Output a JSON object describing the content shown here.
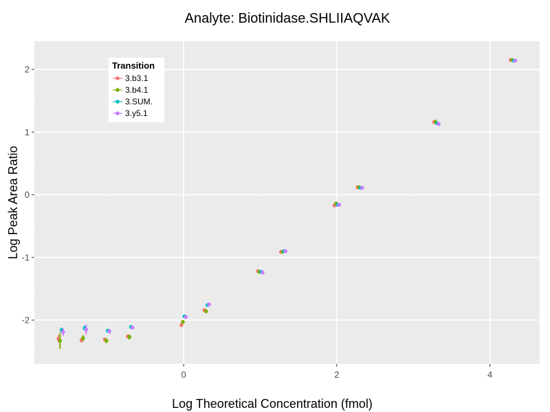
{
  "chart_data": {
    "type": "scatter",
    "title": "Analyte: Biotinidase.SHLIIAQVAK",
    "xlabel": "Log Theoretical Concentration (fmol)",
    "ylabel": "Log Peak Area Ratio",
    "xlim": [
      -1.95,
      4.65
    ],
    "ylim": [
      -2.7,
      2.45
    ],
    "x_ticks": [
      0,
      2,
      4
    ],
    "x_tick_labels": [
      "0",
      "2",
      "4"
    ],
    "y_ticks": [
      -2,
      -1,
      0,
      1,
      2
    ],
    "y_tick_labels": [
      "-2",
      "-1",
      "0",
      "1",
      "2"
    ],
    "grid": true,
    "legend": {
      "title": "Transition",
      "position": "top-left"
    },
    "x": [
      -1.605,
      -1.304,
      -1.0,
      -0.699,
      0.0,
      0.301,
      1.0,
      1.301,
      2.0,
      2.301,
      3.301,
      4.301
    ],
    "series": [
      {
        "name": "3.b3.1",
        "color": "#F8766D",
        "dodge": -0.03,
        "values": [
          -2.3,
          -2.32,
          -2.31,
          -2.26,
          -2.08,
          -1.84,
          -1.22,
          -0.91,
          -0.17,
          0.12,
          1.16,
          2.15
        ],
        "err": [
          0.06,
          0.04,
          0.03,
          0.03,
          0.03,
          0.02,
          0.03,
          0.02,
          0.02,
          0.02,
          0.02,
          0.02
        ]
      },
      {
        "name": "3.b4.1",
        "color": "#7CAE00",
        "dodge": -0.01,
        "values": [
          -2.33,
          -2.29,
          -2.33,
          -2.27,
          -2.03,
          -1.86,
          -1.23,
          -0.91,
          -0.14,
          0.12,
          1.16,
          2.15
        ],
        "err": [
          0.13,
          0.05,
          0.04,
          0.04,
          0.03,
          0.03,
          0.03,
          0.02,
          0.03,
          0.02,
          0.04,
          0.02
        ]
      },
      {
        "name": "3.SUM.",
        "color": "#00BFC4",
        "dodge": 0.01,
        "values": [
          -2.16,
          -2.13,
          -2.17,
          -2.11,
          -1.94,
          -1.76,
          -1.23,
          -0.9,
          -0.16,
          0.11,
          1.14,
          2.14
        ],
        "err": [
          0.04,
          0.04,
          0.03,
          0.03,
          0.02,
          0.02,
          0.02,
          0.02,
          0.02,
          0.02,
          0.02,
          0.02
        ]
      },
      {
        "name": "3.y5.1",
        "color": "#C77CFF",
        "dodge": 0.03,
        "values": [
          -2.19,
          -2.15,
          -2.18,
          -2.12,
          -1.95,
          -1.75,
          -1.24,
          -0.9,
          -0.16,
          0.11,
          1.13,
          2.14
        ],
        "err": [
          0.06,
          0.08,
          0.04,
          0.03,
          0.03,
          0.02,
          0.02,
          0.02,
          0.02,
          0.02,
          0.02,
          0.02
        ]
      }
    ]
  }
}
